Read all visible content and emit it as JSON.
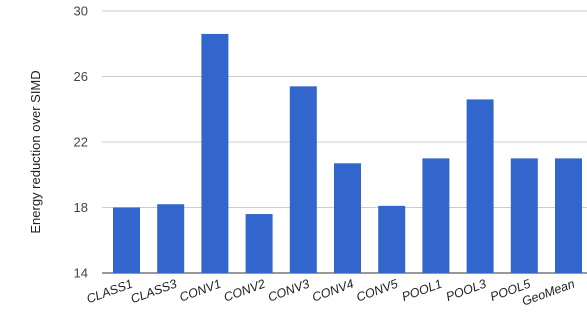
{
  "chart_data": {
    "type": "bar",
    "ylabel": "Energy reduction over SIMD",
    "xlabel": "",
    "title": "",
    "ylim": [
      14,
      30
    ],
    "yticks": [
      14,
      18,
      22,
      26,
      30
    ],
    "grid": true,
    "bar_color": "#3366cc",
    "categories": [
      "CLASS1",
      "CLASS3",
      "CONV1",
      "CONV2",
      "CONV3",
      "CONV4",
      "CONV5",
      "POOL1",
      "POOL3",
      "POOL5",
      "GeoMean"
    ],
    "values": [
      18.0,
      18.2,
      28.6,
      17.6,
      25.4,
      20.7,
      18.1,
      21.0,
      24.6,
      21.0,
      21.0
    ]
  }
}
